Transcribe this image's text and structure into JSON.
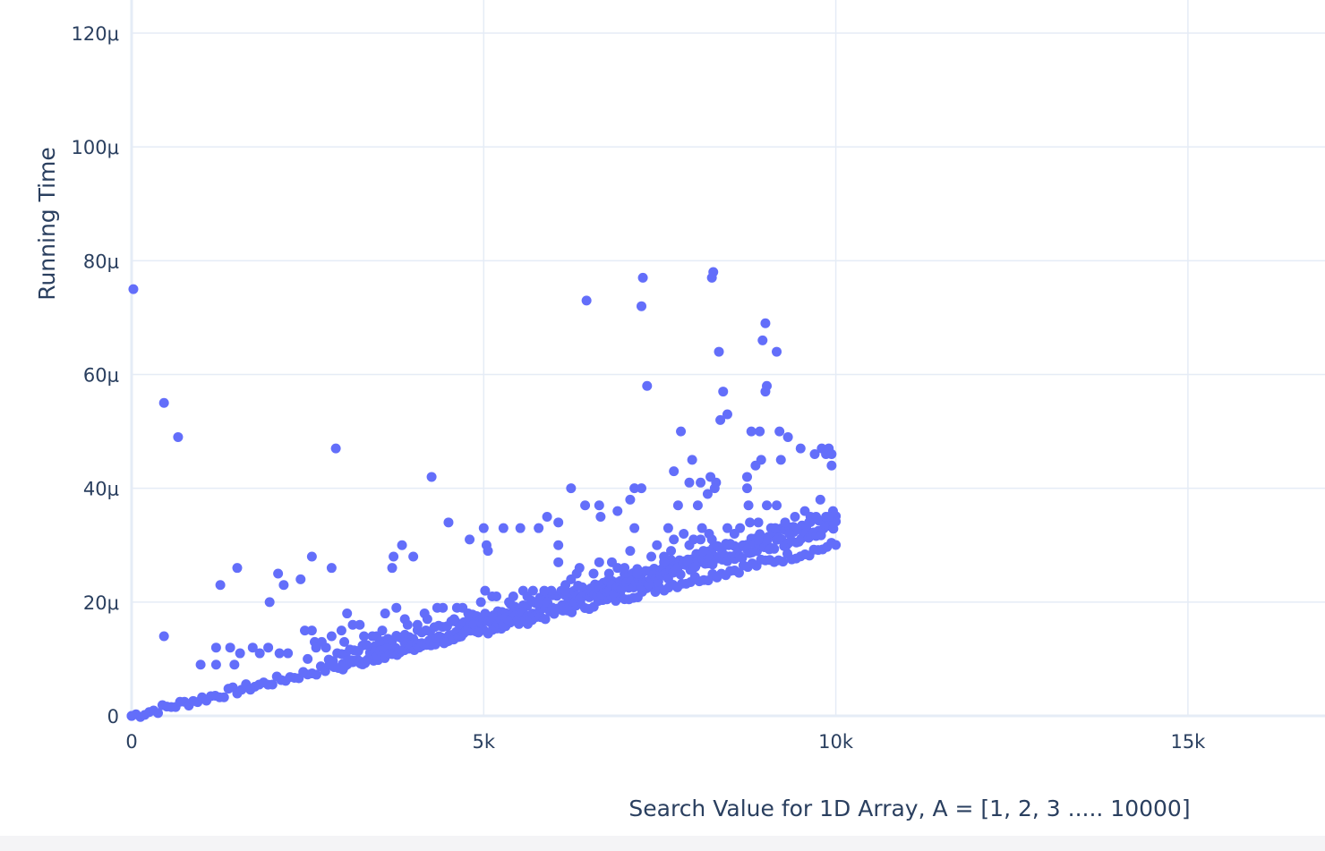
{
  "chart_data": {
    "type": "scatter",
    "title": "",
    "xlabel": "Search Value for 1D Array, A = [1, 2, 3 ..... 10000]",
    "ylabel": "Running Time",
    "xlim": [
      0,
      17000
    ],
    "ylim": [
      0,
      0.000121
    ],
    "x_ticks": [
      0,
      5000,
      10000,
      15000
    ],
    "x_tick_labels": [
      "0",
      "5k",
      "10k",
      "15k"
    ],
    "y_ticks": [
      0,
      2e-05,
      4e-05,
      6e-05,
      8e-05,
      0.0001,
      0.00012
    ],
    "y_tick_labels": [
      "0",
      "20μ",
      "40μ",
      "60μ",
      "80μ",
      "100μ",
      "120μ"
    ],
    "grid": true,
    "legend": "none",
    "marker_color": "#636efa",
    "series": [
      {
        "points": [
          [
            460,
            5.5e-05
          ],
          [
            660,
            4.9e-05
          ],
          [
            460,
            1.4e-05
          ],
          [
            2900,
            4.7e-05
          ],
          [
            4260,
            4.2e-05
          ],
          [
            6460,
            7.3e-05
          ],
          [
            7260,
            7.7e-05
          ],
          [
            7240,
            7.2e-05
          ],
          [
            7320,
            5.8e-05
          ],
          [
            8260,
            7.8e-05
          ],
          [
            8240,
            7.7e-05
          ],
          [
            8340,
            6.4e-05
          ],
          [
            8400,
            5.7e-05
          ],
          [
            8360,
            5.2e-05
          ],
          [
            8460,
            5.3e-05
          ],
          [
            9000,
            6.9e-05
          ],
          [
            8960,
            6.6e-05
          ],
          [
            9020,
            5.8e-05
          ],
          [
            9000,
            5.7e-05
          ],
          [
            9160,
            6.4e-05
          ],
          [
            7800,
            5e-05
          ],
          [
            8800,
            5e-05
          ],
          [
            8920,
            5e-05
          ],
          [
            9200,
            5e-05
          ],
          [
            9320,
            4.9e-05
          ],
          [
            7960,
            4.5e-05
          ],
          [
            8940,
            4.5e-05
          ],
          [
            9220,
            4.5e-05
          ],
          [
            9500,
            4.7e-05
          ],
          [
            9700,
            4.6e-05
          ],
          [
            9800,
            4.7e-05
          ],
          [
            9900,
            4.7e-05
          ],
          [
            9860,
            4.6e-05
          ],
          [
            9940,
            4.6e-05
          ],
          [
            9940,
            4.4e-05
          ],
          [
            7700,
            4.3e-05
          ],
          [
            8300,
            4.1e-05
          ],
          [
            8740,
            4.2e-05
          ],
          [
            8740,
            4e-05
          ],
          [
            8860,
            4.4e-05
          ],
          [
            7920,
            4.1e-05
          ],
          [
            8080,
            4.1e-05
          ],
          [
            8220,
            4.2e-05
          ],
          [
            8180,
            3.9e-05
          ],
          [
            8280,
            4e-05
          ],
          [
            6240,
            4e-05
          ],
          [
            7140,
            4e-05
          ],
          [
            7240,
            4e-05
          ],
          [
            7080,
            3.8e-05
          ],
          [
            8040,
            3.7e-05
          ],
          [
            7760,
            3.7e-05
          ],
          [
            8760,
            3.7e-05
          ],
          [
            9020,
            3.7e-05
          ],
          [
            9160,
            3.7e-05
          ],
          [
            9780,
            3.8e-05
          ],
          [
            9960,
            3.6e-05
          ],
          [
            6440,
            3.7e-05
          ],
          [
            6640,
            3.7e-05
          ],
          [
            6660,
            3.5e-05
          ],
          [
            6900,
            3.6e-05
          ],
          [
            7140,
            3.3e-05
          ],
          [
            7620,
            3.3e-05
          ],
          [
            4500,
            3.4e-05
          ],
          [
            6060,
            3.4e-05
          ],
          [
            5900,
            3.5e-05
          ],
          [
            4800,
            3.1e-05
          ],
          [
            5000,
            3.3e-05
          ],
          [
            5280,
            3.3e-05
          ],
          [
            5520,
            3.3e-05
          ],
          [
            5780,
            3.3e-05
          ],
          [
            5040,
            3e-05
          ],
          [
            5060,
            2.9e-05
          ],
          [
            6060,
            3e-05
          ],
          [
            3840,
            3e-05
          ],
          [
            3720,
            2.8e-05
          ],
          [
            4000,
            2.8e-05
          ],
          [
            3700,
            2.6e-05
          ],
          [
            2560,
            2.8e-05
          ],
          [
            2840,
            2.6e-05
          ],
          [
            2400,
            2.4e-05
          ],
          [
            1500,
            2.6e-05
          ],
          [
            1260,
            2.3e-05
          ],
          [
            2080,
            2.5e-05
          ],
          [
            2160,
            2.3e-05
          ],
          [
            1960,
            2e-05
          ],
          [
            1400,
            1.2e-05
          ],
          [
            1540,
            1.1e-05
          ],
          [
            1720,
            1.2e-05
          ],
          [
            1820,
            1.1e-05
          ],
          [
            1940,
            1.2e-05
          ],
          [
            2100,
            1.1e-05
          ],
          [
            2220,
            1.1e-05
          ],
          [
            1460,
            9e-06
          ],
          [
            1200,
            1.2e-05
          ],
          [
            980,
            9e-06
          ],
          [
            1200,
            9e-06
          ],
          [
            2460,
            1.5e-05
          ],
          [
            2560,
            1.5e-05
          ],
          [
            2600,
            1.3e-05
          ],
          [
            2760,
            1.2e-05
          ],
          [
            2500,
            1e-05
          ],
          [
            3060,
            1.8e-05
          ],
          [
            3140,
            1.6e-05
          ],
          [
            3240,
            1.6e-05
          ],
          [
            3480,
            1.4e-05
          ],
          [
            3600,
            1.8e-05
          ],
          [
            3760,
            1.9e-05
          ],
          [
            3880,
            1.7e-05
          ],
          [
            4160,
            1.8e-05
          ],
          [
            4420,
            1.9e-05
          ],
          [
            4580,
            1.7e-05
          ],
          [
            4700,
            1.9e-05
          ],
          [
            4960,
            2e-05
          ],
          [
            5180,
            2.1e-05
          ],
          [
            5700,
            2.2e-05
          ],
          [
            5780,
            2e-05
          ],
          [
            6060,
            2.7e-05
          ],
          [
            6160,
            2.3e-05
          ],
          [
            6240,
            2.4e-05
          ],
          [
            6640,
            2.7e-05
          ],
          [
            6900,
            2.6e-05
          ],
          [
            7080,
            2.9e-05
          ],
          [
            7560,
            2.8e-05
          ],
          [
            7660,
            2.9e-05
          ],
          [
            7700,
            3.1e-05
          ],
          [
            7840,
            3.2e-05
          ],
          [
            7920,
            3e-05
          ],
          [
            8100,
            3.3e-05
          ],
          [
            8200,
            3.2e-05
          ],
          [
            8460,
            3.3e-05
          ],
          [
            8640,
            3.3e-05
          ],
          [
            8780,
            3.4e-05
          ],
          [
            8900,
            3.4e-05
          ],
          [
            9080,
            3.3e-05
          ],
          [
            9280,
            3.4e-05
          ],
          [
            9420,
            3.5e-05
          ],
          [
            9560,
            3.6e-05
          ],
          [
            9640,
            3.5e-05
          ],
          [
            9720,
            3.5e-05
          ],
          [
            9860,
            3.5e-05
          ],
          [
            9960,
            3.4e-05
          ],
          [
            8480,
            3e-05
          ],
          [
            8240,
            3.1e-05
          ],
          [
            8080,
            3.1e-05
          ],
          [
            7560,
            2.7e-05
          ],
          [
            7380,
            2.8e-05
          ],
          [
            7180,
            2.5e-05
          ],
          [
            7000,
            2.6e-05
          ],
          [
            6780,
            2.5e-05
          ],
          [
            6560,
            2.5e-05
          ],
          [
            6320,
            2.5e-05
          ],
          [
            6160,
            2.2e-05
          ],
          [
            5960,
            2.2e-05
          ],
          [
            5560,
            2.2e-05
          ],
          [
            5360,
            2e-05
          ],
          [
            5020,
            2.2e-05
          ],
          [
            4780,
            1.8e-05
          ],
          [
            4620,
            1.9e-05
          ],
          [
            4340,
            1.9e-05
          ],
          [
            4200,
            1.7e-05
          ],
          [
            4060,
            1.6e-05
          ],
          [
            3920,
            1.6e-05
          ],
          [
            3560,
            1.5e-05
          ],
          [
            3420,
            1.4e-05
          ],
          [
            3300,
            1.4e-05
          ],
          [
            3020,
            1.3e-05
          ],
          [
            2840,
            1.4e-05
          ],
          [
            2700,
            1.3e-05
          ],
          [
            2620,
            1.2e-05
          ],
          [
            2980,
            1.5e-05
          ],
          [
            5120,
            2.1e-05
          ],
          [
            5420,
            2.1e-05
          ],
          [
            5620,
            2.1e-05
          ],
          [
            5860,
            2.2e-05
          ],
          [
            6360,
            2.6e-05
          ],
          [
            6820,
            2.7e-05
          ],
          [
            7460,
            3e-05
          ],
          [
            7980,
            3.1e-05
          ],
          [
            8560,
            3.2e-05
          ],
          [
            9140,
            3.3e-05
          ],
          [
            9620,
            3.4e-05
          ],
          [
            8120,
            2.9e-05
          ],
          [
            8900,
            3.1e-05
          ],
          [
            9340,
            3.2e-05
          ],
          [
            9900,
            3.5e-05
          ]
        ],
        "bands": [
          {
            "x_start": 0,
            "x_end": 10000,
            "y_start": 0,
            "y_end": 3e-05,
            "count": 160
          },
          {
            "x_start": 2800,
            "x_end": 10000,
            "y_start": 1e-05,
            "y_end": 3.5e-05,
            "count": 120
          }
        ]
      }
    ]
  }
}
